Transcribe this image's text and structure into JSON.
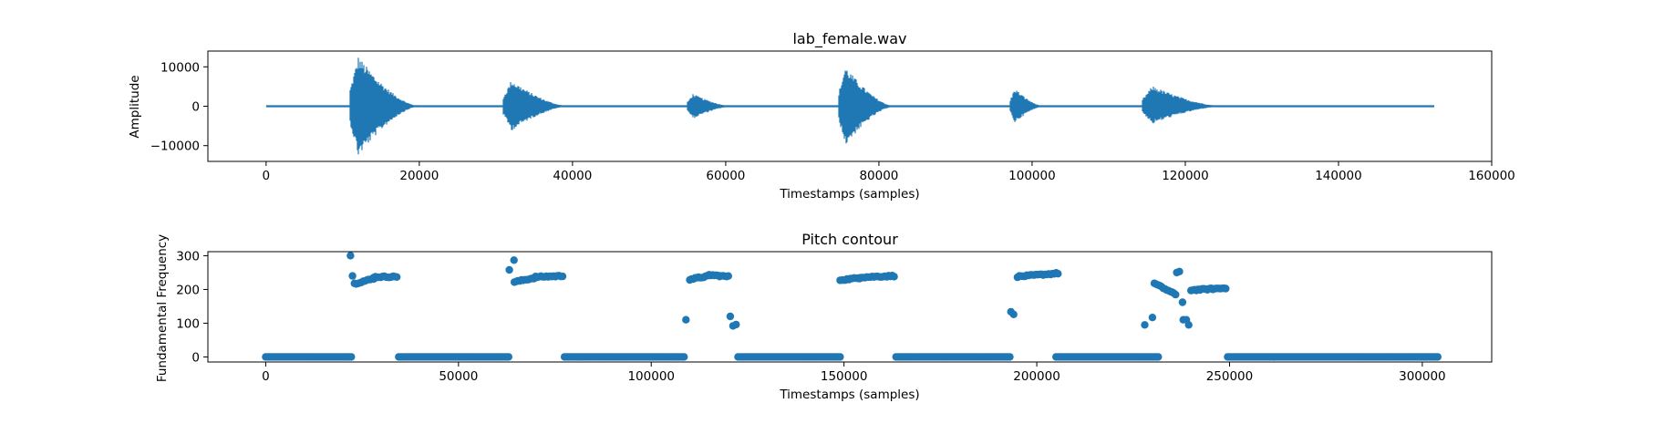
{
  "chart_data": [
    {
      "type": "line",
      "title": "lab_female.wav",
      "xlabel": "Timestamps (samples)",
      "ylabel": "Amplitude",
      "xlim": [
        -7600,
        160000
      ],
      "ylim": [
        -14000,
        14000
      ],
      "xticks": [
        0,
        20000,
        40000,
        60000,
        80000,
        100000,
        120000,
        140000,
        160000
      ],
      "yticks": [
        -10000,
        0,
        10000
      ],
      "color": "#1f77b4",
      "grid": false,
      "signal_span": [
        0,
        152500
      ],
      "segments": [
        {
          "start": 11000,
          "end": 20000,
          "peak_pos": 12700,
          "peak_neg": -12700
        },
        {
          "start": 31000,
          "end": 39500,
          "peak_pos": 6700,
          "peak_neg": -6200
        },
        {
          "start": 55000,
          "end": 61000,
          "peak_pos": 3200,
          "peak_neg": -3200
        },
        {
          "start": 74800,
          "end": 82000,
          "peak_pos": 10200,
          "peak_neg": -10000
        },
        {
          "start": 97200,
          "end": 101500,
          "peak_pos": 4600,
          "peak_neg": -4200
        },
        {
          "start": 114400,
          "end": 125000,
          "peak_pos": 5200,
          "peak_neg": -4500
        }
      ]
    },
    {
      "type": "scatter",
      "title": "Pitch contour",
      "xlabel": "Timestamps (samples)",
      "ylabel": "Fundamental Frequency",
      "xlim": [
        -15000,
        318000
      ],
      "ylim": [
        -15,
        312
      ],
      "xticks": [
        0,
        50000,
        100000,
        150000,
        200000,
        250000,
        300000
      ],
      "yticks": [
        0,
        100,
        200,
        300
      ],
      "color": "#1f77b4",
      "grid": false,
      "points": [
        [
          22000,
          300
        ],
        [
          22500,
          240
        ],
        [
          63200,
          258
        ],
        [
          64400,
          287
        ],
        [
          109000,
          110
        ],
        [
          120500,
          120
        ],
        [
          121200,
          92
        ],
        [
          122000,
          96
        ],
        [
          193300,
          134
        ],
        [
          194000,
          126
        ],
        [
          228000,
          95
        ],
        [
          230000,
          117
        ],
        [
          236300,
          250
        ],
        [
          237000,
          253
        ],
        [
          237800,
          162
        ],
        [
          238000,
          110
        ],
        [
          238800,
          110
        ],
        [
          239400,
          95
        ]
      ],
      "runs": [
        {
          "x_start": 0,
          "x_end": 22200,
          "y_start": 0,
          "y_end": 0
        },
        {
          "x_start": 23000,
          "x_end": 28000,
          "y_start": 217,
          "y_end": 232
        },
        {
          "x_start": 28000,
          "x_end": 34000,
          "y_start": 237,
          "y_end": 238
        },
        {
          "x_start": 34500,
          "x_end": 63000,
          "y_start": 0,
          "y_end": 0
        },
        {
          "x_start": 64500,
          "x_end": 70000,
          "y_start": 222,
          "y_end": 235
        },
        {
          "x_start": 70000,
          "x_end": 77000,
          "y_start": 237,
          "y_end": 240
        },
        {
          "x_start": 77500,
          "x_end": 108500,
          "y_start": 0,
          "y_end": 0
        },
        {
          "x_start": 110000,
          "x_end": 115000,
          "y_start": 230,
          "y_end": 240
        },
        {
          "x_start": 115000,
          "x_end": 120000,
          "y_start": 243,
          "y_end": 238
        },
        {
          "x_start": 122500,
          "x_end": 149000,
          "y_start": 0,
          "y_end": 0
        },
        {
          "x_start": 149000,
          "x_end": 154000,
          "y_start": 228,
          "y_end": 234
        },
        {
          "x_start": 154000,
          "x_end": 163000,
          "y_start": 236,
          "y_end": 240
        },
        {
          "x_start": 163500,
          "x_end": 193000,
          "y_start": 0,
          "y_end": 0
        },
        {
          "x_start": 195000,
          "x_end": 205500,
          "y_start": 238,
          "y_end": 248
        },
        {
          "x_start": 205000,
          "x_end": 231500,
          "y_start": 0,
          "y_end": 0
        },
        {
          "x_start": 230500,
          "x_end": 236000,
          "y_start": 218,
          "y_end": 185
        },
        {
          "x_start": 240000,
          "x_end": 249000,
          "y_start": 198,
          "y_end": 204
        },
        {
          "x_start": 249500,
          "x_end": 304000,
          "y_start": 0,
          "y_end": 0
        }
      ]
    }
  ]
}
